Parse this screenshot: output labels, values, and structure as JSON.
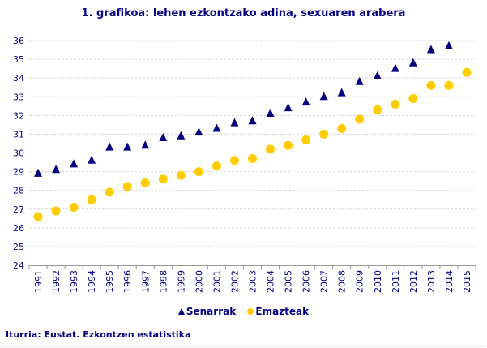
{
  "chart_data": {
    "type": "scatter",
    "title": "1. grafikoa: lehen ezkontzako adina, sexuaren arabera",
    "categories": [
      "1991",
      "1992",
      "1993",
      "1994",
      "1995",
      "1996",
      "1997",
      "1998",
      "1999",
      "2000",
      "2001",
      "2002",
      "2003",
      "2004",
      "2005",
      "2006",
      "2007",
      "2008",
      "2009",
      "2010",
      "2011",
      "2012",
      "2013",
      "2014",
      "2015"
    ],
    "series": [
      {
        "name": "Senarrak",
        "marker": "triangle",
        "color": "#000080",
        "values": [
          28.9,
          29.1,
          29.4,
          29.6,
          30.3,
          30.3,
          30.4,
          30.8,
          30.9,
          31.1,
          31.3,
          31.6,
          31.7,
          32.1,
          32.4,
          32.7,
          33.0,
          33.2,
          33.8,
          34.1,
          34.5,
          34.8,
          35.5,
          35.7,
          null
        ]
      },
      {
        "name": "Emazteak",
        "marker": "circle",
        "color": "#FFCC00",
        "values": [
          26.6,
          26.9,
          27.1,
          27.5,
          27.9,
          28.2,
          28.4,
          28.6,
          28.8,
          29.0,
          29.3,
          29.6,
          29.7,
          30.2,
          30.4,
          30.7,
          31.0,
          31.3,
          31.8,
          32.3,
          32.6,
          32.9,
          33.6,
          33.6,
          34.3
        ]
      }
    ],
    "yticks": [
      "24",
      "25",
      "26",
      "27",
      "28",
      "29",
      "30",
      "31",
      "32",
      "33",
      "34",
      "35",
      "36"
    ],
    "ylim": [
      24,
      36
    ],
    "xlabel": "",
    "ylabel": "",
    "grid": "horizontal dashed",
    "legend_position": "bottom"
  },
  "source": "Iturria: Eustat. Ezkontzen estatistika"
}
